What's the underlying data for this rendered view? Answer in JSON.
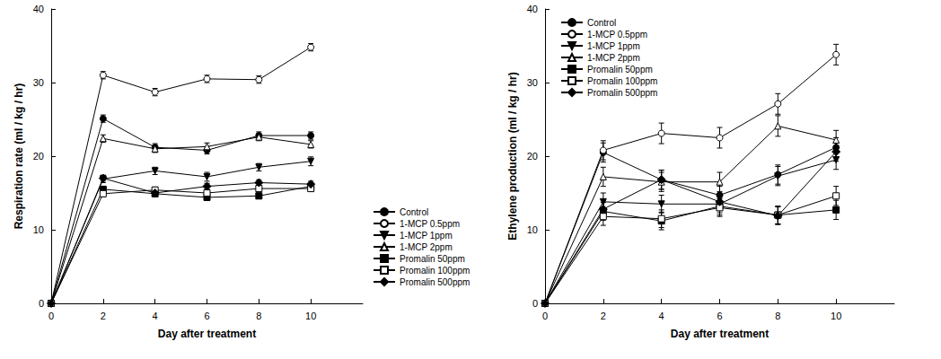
{
  "chart_data": [
    {
      "type": "line",
      "x_label": "Day after treatment",
      "y_label": "Respiration rate (ml / kg / hr)",
      "x": [
        0,
        2,
        4,
        6,
        8,
        10
      ],
      "xlim": [
        0,
        12
      ],
      "xticks": [
        0,
        2,
        4,
        6,
        8,
        10
      ],
      "ylim": [
        0,
        40
      ],
      "yticks": [
        0,
        10,
        20,
        30,
        40
      ],
      "grid": false,
      "legend": "lower right",
      "series": [
        {
          "name": "Control",
          "color": "#000000",
          "marker": "filled_circle",
          "values": [
            0,
            25.1,
            21.2,
            20.8,
            22.8,
            22.8
          ],
          "errors": [
            0,
            0.5,
            0.5,
            0.5,
            0.5,
            0.5
          ]
        },
        {
          "name": "1-MCP 0.5ppm",
          "color": "#000000",
          "marker": "open_circle",
          "values": [
            0,
            31.0,
            28.7,
            30.5,
            30.4,
            34.8
          ],
          "errors": [
            0,
            0.5,
            0.5,
            0.5,
            0.5,
            0.5
          ]
        },
        {
          "name": "1-MCP 1ppm",
          "color": "#000000",
          "marker": "filled_triangle_down",
          "values": [
            0,
            16.9,
            18.0,
            17.2,
            18.5,
            19.3
          ],
          "errors": [
            0,
            0.5,
            0.5,
            0.6,
            0.5,
            0.6
          ]
        },
        {
          "name": "1-MCP 2ppm",
          "color": "#000000",
          "marker": "open_triangle_up",
          "values": [
            0,
            22.4,
            21.0,
            21.3,
            22.6,
            21.6
          ],
          "errors": [
            0,
            0.5,
            0.5,
            0.5,
            0.5,
            0.5
          ]
        },
        {
          "name": "Promalin 50ppm",
          "color": "#000000",
          "marker": "filled_square",
          "values": [
            0,
            15.5,
            14.9,
            14.4,
            14.6,
            15.9
          ],
          "errors": [
            0,
            0.4,
            0.4,
            0.4,
            0.4,
            0.4
          ]
        },
        {
          "name": "Promalin 100ppm",
          "color": "#000000",
          "marker": "open_square",
          "values": [
            0,
            14.9,
            15.4,
            15.0,
            15.6,
            15.6
          ],
          "errors": [
            0,
            0.4,
            0.4,
            0.4,
            0.4,
            0.4
          ]
        },
        {
          "name": "Promalin 500ppm",
          "color": "#000000",
          "marker": "filled_diamond",
          "values": [
            0,
            17.0,
            15.0,
            15.9,
            16.4,
            16.2
          ],
          "errors": [
            0,
            0.4,
            0.4,
            0.4,
            0.4,
            0.4
          ]
        }
      ]
    },
    {
      "type": "line",
      "x_label": "Day after treatment",
      "y_label": "Ethylene production (ml / kg / hr)",
      "x": [
        0,
        2,
        4,
        6,
        8,
        10
      ],
      "xlim": [
        0,
        12
      ],
      "xticks": [
        0,
        2,
        4,
        6,
        8,
        10
      ],
      "ylim": [
        0,
        40
      ],
      "yticks": [
        0,
        10,
        20,
        30,
        40
      ],
      "grid": false,
      "legend": "upper left",
      "series": [
        {
          "name": "Control",
          "color": "#000000",
          "marker": "filled_circle",
          "values": [
            0,
            20.5,
            16.8,
            14.7,
            17.5,
            21.2
          ],
          "errors": [
            0,
            1.3,
            1.3,
            1.2,
            1.3,
            1.3
          ]
        },
        {
          "name": "1-MCP 0.5ppm",
          "color": "#000000",
          "marker": "open_circle",
          "values": [
            0,
            20.8,
            23.1,
            22.5,
            27.1,
            33.8
          ],
          "errors": [
            0,
            1.3,
            1.4,
            1.4,
            1.4,
            1.4
          ]
        },
        {
          "name": "1-MCP 1ppm",
          "color": "#000000",
          "marker": "filled_triangle_down",
          "values": [
            0,
            13.8,
            13.5,
            13.5,
            17.3,
            19.5
          ],
          "errors": [
            0,
            1.2,
            1.2,
            1.2,
            1.3,
            1.3
          ]
        },
        {
          "name": "1-MCP 2ppm",
          "color": "#000000",
          "marker": "open_triangle_up",
          "values": [
            0,
            17.2,
            16.5,
            16.5,
            24.1,
            22.2
          ],
          "errors": [
            0,
            1.3,
            1.3,
            1.3,
            1.4,
            1.3
          ]
        },
        {
          "name": "Promalin 50ppm",
          "color": "#000000",
          "marker": "filled_square",
          "values": [
            0,
            12.5,
            11.2,
            13.2,
            12.0,
            12.7
          ],
          "errors": [
            0,
            1.2,
            1.2,
            1.2,
            1.2,
            1.3
          ]
        },
        {
          "name": "Promalin 100ppm",
          "color": "#000000",
          "marker": "open_square",
          "values": [
            0,
            11.8,
            11.5,
            13.0,
            12.0,
            14.6
          ],
          "errors": [
            0,
            1.2,
            1.2,
            1.2,
            1.2,
            1.3
          ]
        },
        {
          "name": "Promalin 500ppm",
          "color": "#000000",
          "marker": "filled_diamond",
          "values": [
            0,
            12.8,
            16.8,
            13.8,
            11.9,
            20.6
          ],
          "errors": [
            0,
            1.2,
            1.3,
            1.2,
            1.2,
            1.3
          ]
        }
      ]
    }
  ]
}
